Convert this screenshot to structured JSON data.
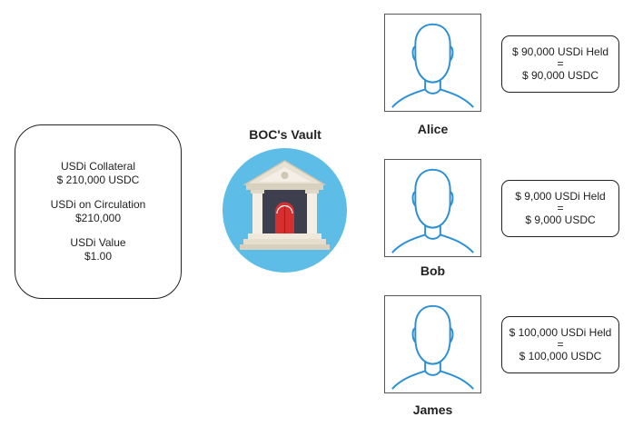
{
  "stats": {
    "collateral_label": "USDi Collateral",
    "collateral_value": "$ 210,000 USDC",
    "circulation_label": "USDi on Circulation",
    "circulation_value": "$210,000",
    "value_label": "USDi Value",
    "value_value": "$1.00"
  },
  "vault": {
    "title": "BOC's Vault",
    "icon": "bank-icon",
    "circle_color": "#5dbde6",
    "door_color": "#d62f2f"
  },
  "holders": [
    {
      "name": "Alice",
      "held": "$ 90,000 USDi Held",
      "equals": "=",
      "usdc": "$ 90,000 USDC"
    },
    {
      "name": "Bob",
      "held": "$ 9,000 USDi Held",
      "equals": "=",
      "usdc": "$ 9,000 USDC"
    },
    {
      "name": "James",
      "held": "$ 100,000 USDi Held",
      "equals": "=",
      "usdc": "$ 100,000 USDC"
    }
  ],
  "person_icon": "user-icon",
  "person_icon_color": "#2b8fd6"
}
